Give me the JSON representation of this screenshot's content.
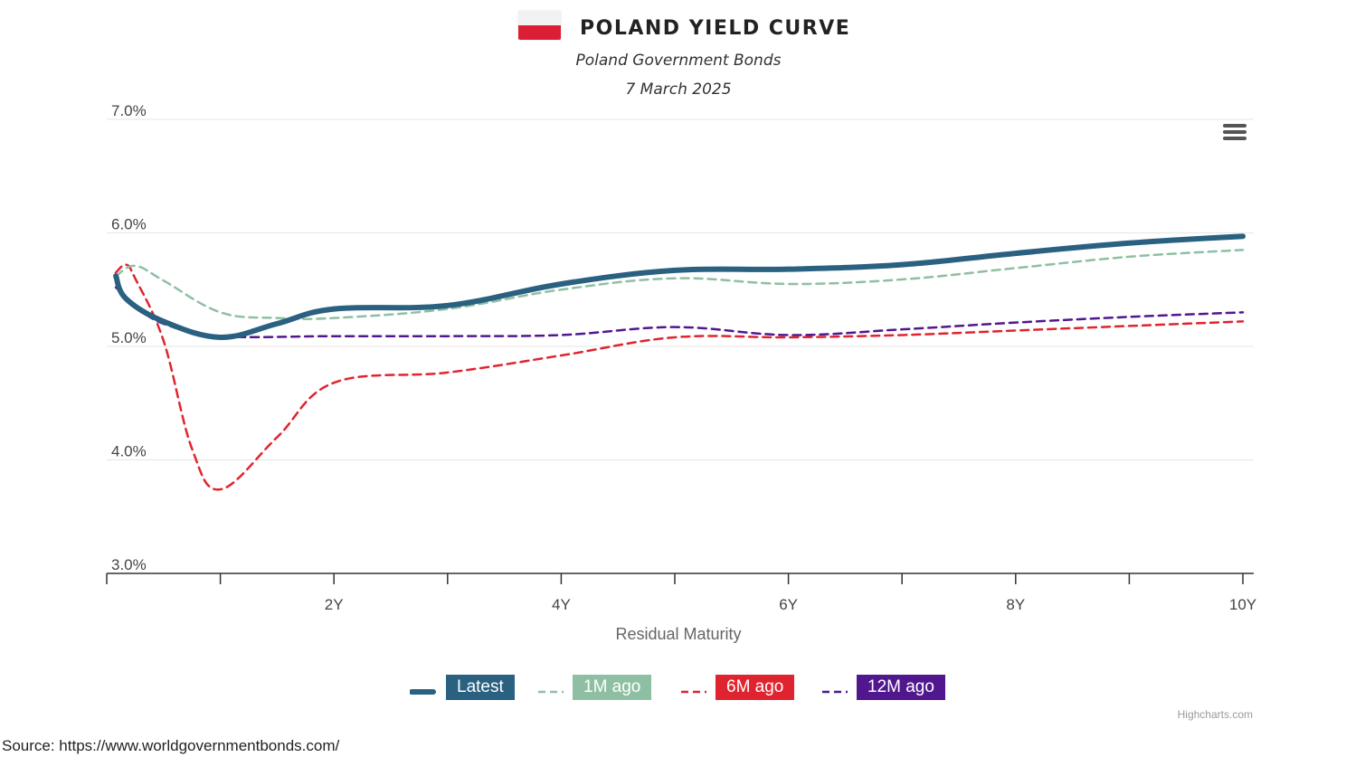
{
  "header": {
    "title": "POLAND YIELD CURVE",
    "subtitle": "Poland Government Bonds",
    "date": "7 March 2025"
  },
  "colors": {
    "latest": "#2a6080",
    "m1": "#8fbfa3",
    "m6": "#e0242f",
    "m12": "#51178f",
    "flag_red": "#dc1e35"
  },
  "chart_data": {
    "type": "line",
    "xlabel": "Residual Maturity",
    "ylabel": "",
    "x_ticks": [
      "2Y",
      "4Y",
      "6Y",
      "8Y",
      "10Y"
    ],
    "y_ticks": [
      "3.0%",
      "4.0%",
      "5.0%",
      "6.0%",
      "7.0%"
    ],
    "xlim": [
      0,
      10
    ],
    "ylim": [
      3.0,
      7.0
    ],
    "grid": true,
    "legend_position": "bottom",
    "series": [
      {
        "name": "Latest",
        "x": [
          0.08,
          0.17,
          0.5,
          1,
          1.5,
          2,
          3,
          4,
          5,
          6,
          7,
          8,
          9,
          10
        ],
        "values": [
          5.62,
          5.42,
          5.22,
          5.08,
          5.2,
          5.33,
          5.36,
          5.55,
          5.67,
          5.68,
          5.72,
          5.82,
          5.91,
          5.97
        ]
      },
      {
        "name": "1M ago",
        "x": [
          0.08,
          0.25,
          0.5,
          1,
          1.5,
          2,
          3,
          4,
          5,
          6,
          7,
          8,
          9,
          10
        ],
        "values": [
          5.62,
          5.71,
          5.58,
          5.3,
          5.25,
          5.25,
          5.33,
          5.5,
          5.6,
          5.55,
          5.59,
          5.69,
          5.79,
          5.85
        ]
      },
      {
        "name": "6M ago",
        "x": [
          0.08,
          0.17,
          0.25,
          0.5,
          0.75,
          1,
          1.5,
          2,
          3,
          4,
          5,
          6,
          7,
          8,
          9,
          10
        ],
        "values": [
          5.65,
          5.72,
          5.6,
          5.05,
          4.1,
          3.74,
          4.2,
          4.68,
          4.77,
          4.92,
          5.08,
          5.08,
          5.1,
          5.14,
          5.18,
          5.22
        ]
      },
      {
        "name": "12M ago",
        "x": [
          0.08,
          0.25,
          0.5,
          1,
          2,
          3,
          4,
          5,
          6,
          7,
          8,
          9,
          10
        ],
        "values": [
          5.52,
          5.36,
          5.2,
          5.09,
          5.09,
          5.09,
          5.1,
          5.17,
          5.1,
          5.15,
          5.21,
          5.26,
          5.3
        ]
      }
    ]
  },
  "menu": {
    "icon": "hamburger-menu-icon"
  },
  "credits": "Highcharts.com",
  "source": "Source:  https://www.worldgovernmentbonds.com/"
}
